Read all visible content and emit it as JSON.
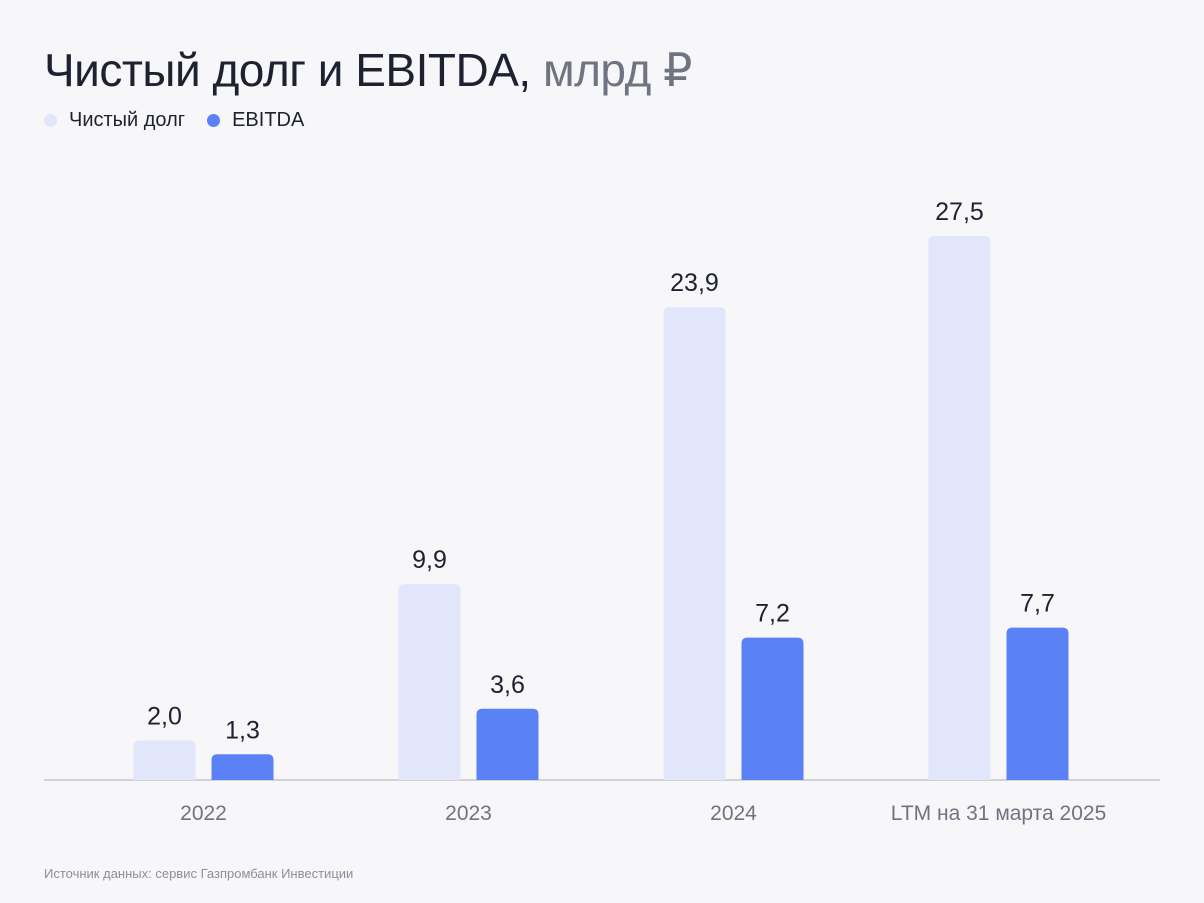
{
  "title": {
    "main": "Чистый долг и EBITDA,",
    "unit": "млрд ₽"
  },
  "legend": [
    {
      "label": "Чистый долг",
      "color": "#e1e6fb"
    },
    {
      "label": "EBITDA",
      "color": "#5b81f6"
    }
  ],
  "source": "Источник данных: сервис Газпромбанк Инвестиции",
  "chart_data": {
    "type": "bar",
    "title": "Чистый долг и EBITDA, млрд ₽",
    "categories": [
      "2022",
      "2023",
      "2024",
      "LTM на 31 марта 2025"
    ],
    "series": [
      {
        "name": "Чистый долг",
        "values": [
          2.0,
          9.9,
          23.9,
          27.5
        ],
        "labels": [
          "2,0",
          "9,9",
          "23,9",
          "27,5"
        ],
        "color": "#e1e6fb"
      },
      {
        "name": "EBITDA",
        "values": [
          1.3,
          3.6,
          7.2,
          7.7
        ],
        "labels": [
          "1,3",
          "3,6",
          "7,2",
          "7,7"
        ],
        "color": "#5b81f6"
      }
    ],
    "ylim": [
      0,
      27.5
    ],
    "xlabel": "",
    "ylabel": "",
    "grid": false,
    "legend_position": "top-left"
  }
}
